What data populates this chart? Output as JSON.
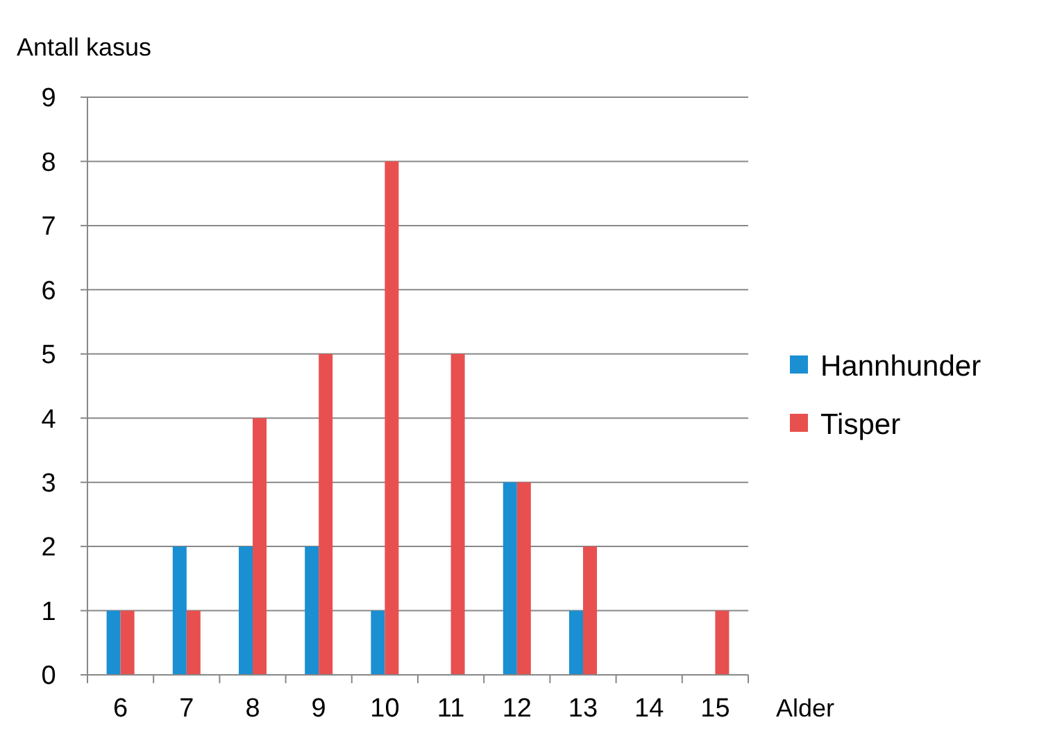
{
  "chart_data": {
    "type": "bar",
    "ylabel": "Antall kasus",
    "xlabel": "Alder",
    "categories": [
      "6",
      "7",
      "8",
      "9",
      "10",
      "11",
      "12",
      "13",
      "14",
      "15"
    ],
    "series": [
      {
        "name": "Hannhunder",
        "color": "#1a8fd2",
        "values": [
          1,
          2,
          2,
          2,
          1,
          0,
          3,
          1,
          0,
          0
        ]
      },
      {
        "name": "Tisper",
        "color": "#e8504f",
        "values": [
          1,
          1,
          4,
          5,
          8,
          5,
          3,
          2,
          0,
          1
        ]
      }
    ],
    "ylim": [
      0,
      9
    ],
    "yticks": [
      0,
      1,
      2,
      3,
      4,
      5,
      6,
      7,
      8,
      9
    ],
    "grid": "y",
    "legend": "right"
  }
}
